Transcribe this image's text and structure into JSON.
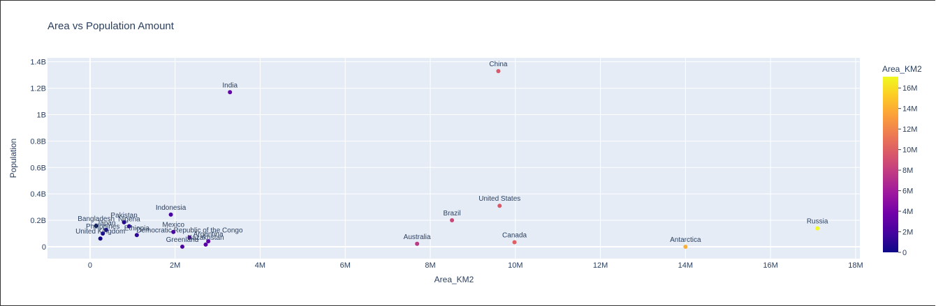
{
  "chart_data": {
    "type": "scatter",
    "title": "Area vs Population Amount",
    "xlabel": "Area_KM2",
    "ylabel": "Population",
    "xlim": [
      -1000000,
      18100000
    ],
    "ylim": [
      -90000000,
      1430000000
    ],
    "x_ticks": [
      {
        "value": 0,
        "label": "0"
      },
      {
        "value": 2000000,
        "label": "2M"
      },
      {
        "value": 4000000,
        "label": "4M"
      },
      {
        "value": 6000000,
        "label": "6M"
      },
      {
        "value": 8000000,
        "label": "8M"
      },
      {
        "value": 10000000,
        "label": "10M"
      },
      {
        "value": 12000000,
        "label": "12M"
      },
      {
        "value": 14000000,
        "label": "14M"
      },
      {
        "value": 16000000,
        "label": "16M"
      },
      {
        "value": 18000000,
        "label": "18M"
      }
    ],
    "y_ticks": [
      {
        "value": 0,
        "label": "0"
      },
      {
        "value": 200000000,
        "label": "0.2B"
      },
      {
        "value": 400000000,
        "label": "0.4B"
      },
      {
        "value": 600000000,
        "label": "0.6B"
      },
      {
        "value": 800000000,
        "label": "0.8B"
      },
      {
        "value": 1000000000,
        "label": "1B"
      },
      {
        "value": 1200000000,
        "label": "1.2B"
      },
      {
        "value": 1400000000,
        "label": "1.4B"
      }
    ],
    "grid": true,
    "colorbar": {
      "title": "Area_KM2",
      "min": 0,
      "max": 17100000,
      "ticks": [
        {
          "value": 0,
          "label": "0"
        },
        {
          "value": 2000000,
          "label": "2M"
        },
        {
          "value": 4000000,
          "label": "4M"
        },
        {
          "value": 6000000,
          "label": "6M"
        },
        {
          "value": 8000000,
          "label": "8M"
        },
        {
          "value": 10000000,
          "label": "10M"
        },
        {
          "value": 12000000,
          "label": "12M"
        },
        {
          "value": 14000000,
          "label": "14M"
        },
        {
          "value": 16000000,
          "label": "16M"
        }
      ],
      "colors": [
        "#0d0887",
        "#46039f",
        "#7201a8",
        "#9c179e",
        "#bd3786",
        "#d8576b",
        "#ed7953",
        "#fb9f3a",
        "#fdca26",
        "#f0f921"
      ]
    },
    "points": [
      {
        "label": "China",
        "x": 9600000,
        "y": 1330000000
      },
      {
        "label": "India",
        "x": 3290000,
        "y": 1170000000
      },
      {
        "label": "United States",
        "x": 9630000,
        "y": 310000000
      },
      {
        "label": "Indonesia",
        "x": 1900000,
        "y": 243000000
      },
      {
        "label": "Brazil",
        "x": 8510000,
        "y": 200000000
      },
      {
        "label": "Pakistan",
        "x": 800000,
        "y": 185000000
      },
      {
        "label": "Bangladesh",
        "x": 144000,
        "y": 158000000
      },
      {
        "label": "Nigeria",
        "x": 920000,
        "y": 155000000
      },
      {
        "label": "Russia",
        "x": 17100000,
        "y": 139000000
      },
      {
        "label": "Japan",
        "x": 378000,
        "y": 127000000
      },
      {
        "label": "Mexico",
        "x": 1960000,
        "y": 112000000
      },
      {
        "label": "Philippines",
        "x": 300000,
        "y": 100000000
      },
      {
        "label": "Ethiopia",
        "x": 1100000,
        "y": 88000000
      },
      {
        "label": "Democratic Republic of the Congo",
        "x": 2340000,
        "y": 70000000
      },
      {
        "label": "Argentina",
        "x": 2780000,
        "y": 41000000
      },
      {
        "label": "Kazakhstan",
        "x": 2720000,
        "y": 16000000
      },
      {
        "label": "Australia",
        "x": 7690000,
        "y": 22000000
      },
      {
        "label": "Canada",
        "x": 9980000,
        "y": 34000000
      },
      {
        "label": "Antarctica",
        "x": 14000000,
        "y": 0
      },
      {
        "label": "United Kingdom",
        "x": 243000,
        "y": 62000000
      },
      {
        "label": "Greenland",
        "x": 2170000,
        "y": 56000
      }
    ]
  }
}
